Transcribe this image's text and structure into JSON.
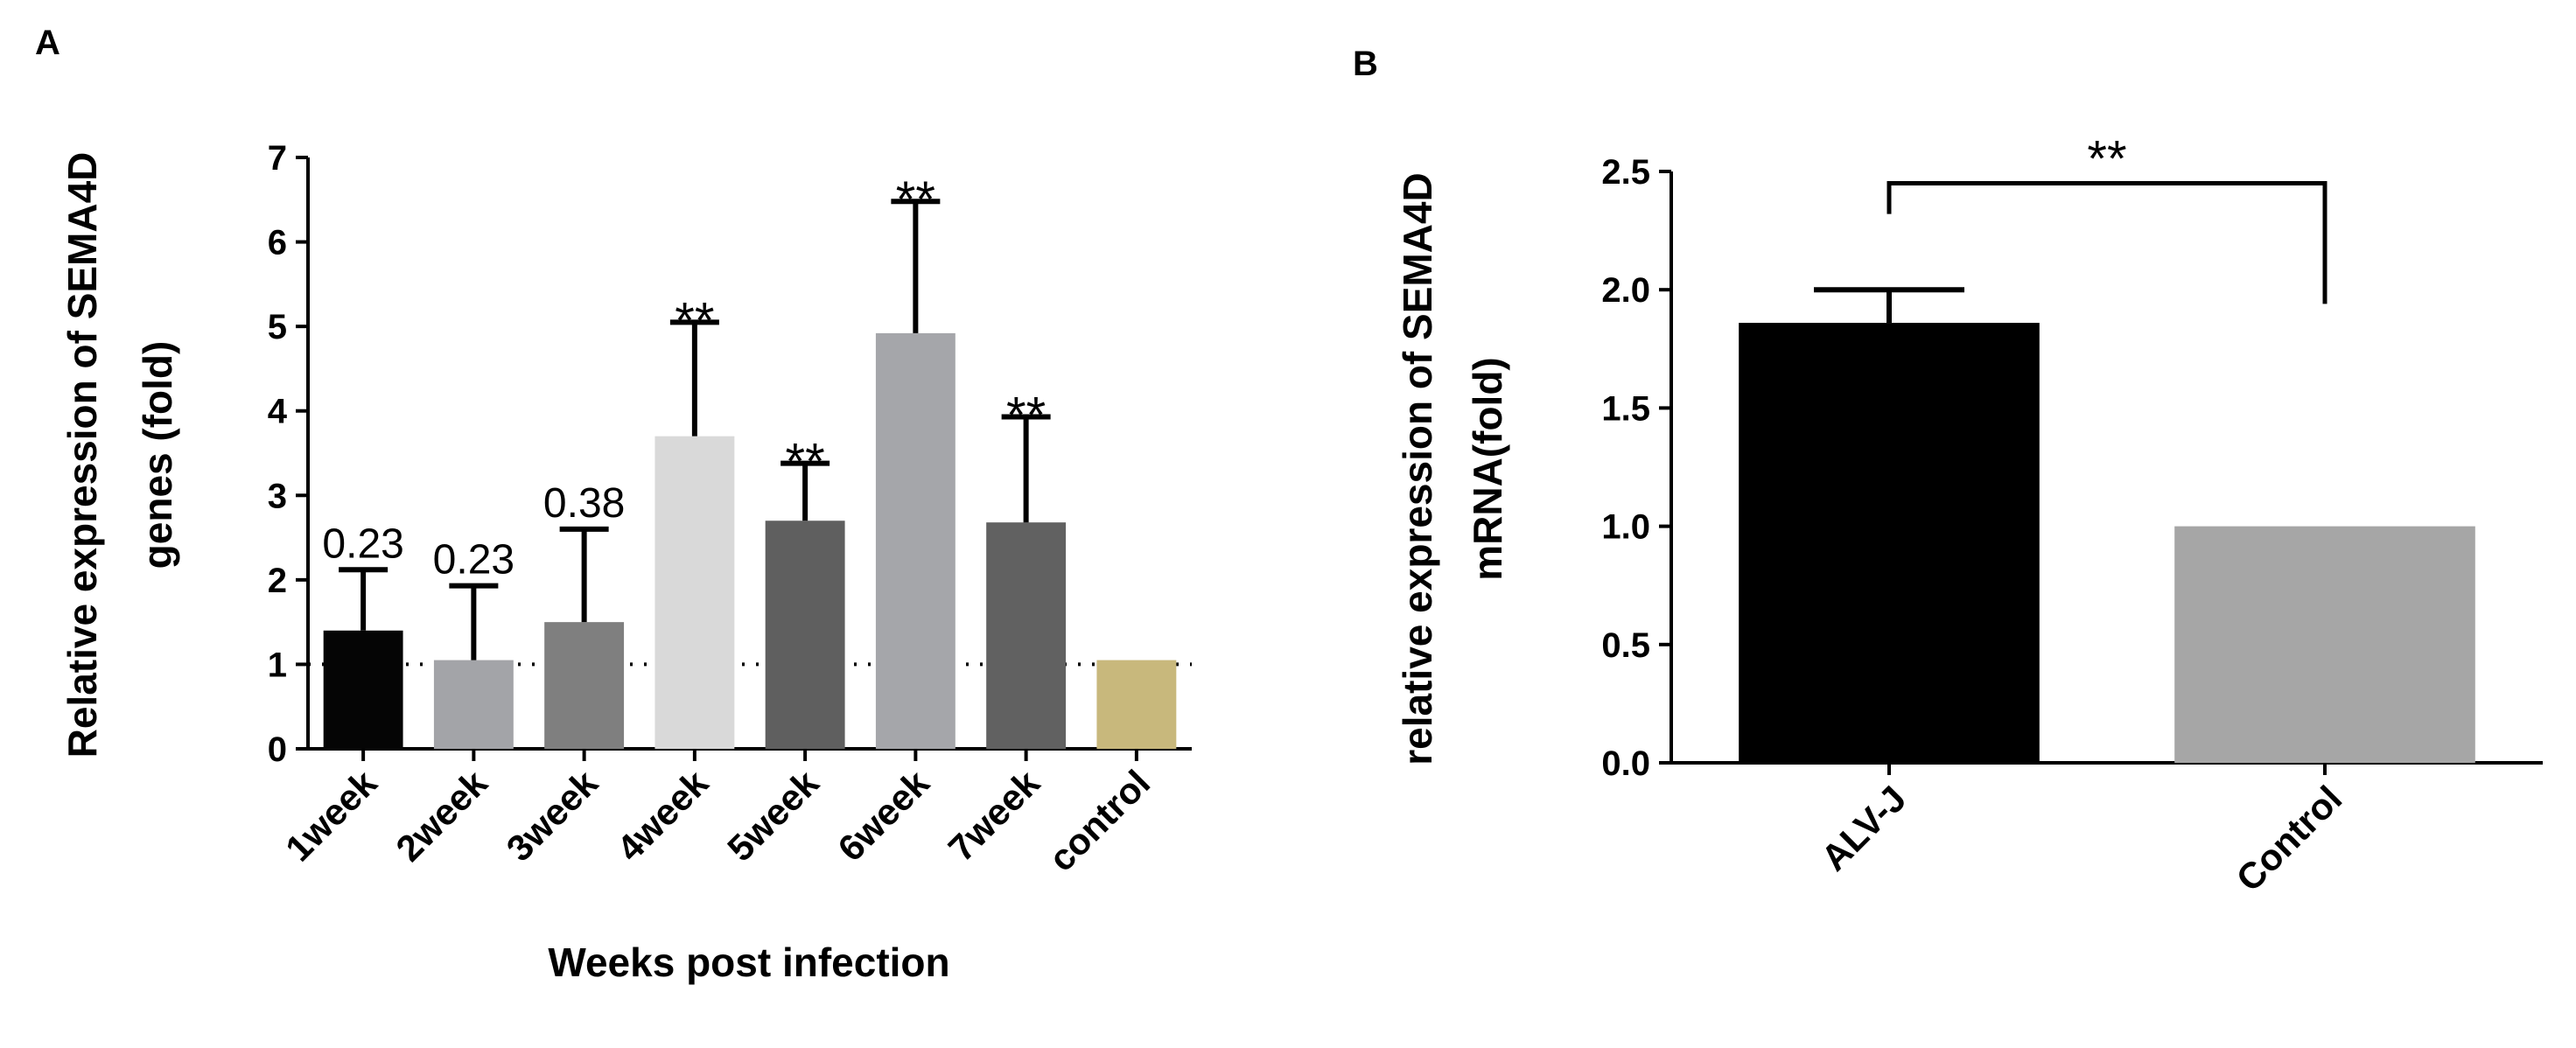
{
  "chart_data": [
    {
      "panel": "A",
      "type": "bar",
      "title": "",
      "xlabel": "Weeks post infection",
      "ylabel": [
        "Relative expression of SEMA4D",
        "genes (fold)"
      ],
      "ylim": [
        0,
        7
      ],
      "yticks": [
        0,
        1,
        2,
        3,
        4,
        5,
        6,
        7
      ],
      "reference_line": 1,
      "categories": [
        "1week",
        "2week",
        "3week",
        "4week",
        "5week",
        "6week",
        "7week",
        "control"
      ],
      "values": [
        1.4,
        1.05,
        1.5,
        3.7,
        2.7,
        4.92,
        2.68,
        1.05
      ],
      "errors": [
        0.72,
        0.88,
        1.1,
        1.35,
        0.68,
        1.56,
        1.25,
        0
      ],
      "colors": [
        "#050505",
        "#a3a4a8",
        "#7f7f7f",
        "#d9d9d9",
        "#5f5f5f",
        "#a5a6aa",
        "#616161",
        "#c8b87c"
      ],
      "annotations": [
        "0.23",
        "0.23",
        "0.38",
        "**",
        "**",
        "**",
        "**",
        ""
      ]
    },
    {
      "panel": "B",
      "type": "bar",
      "title": "",
      "xlabel": "",
      "ylabel": [
        "relative expression of SEMA4D",
        "mRNA(fold)"
      ],
      "ylim": [
        0,
        2.5
      ],
      "yticks": [
        "0.0",
        "0.5",
        "1.0",
        "1.5",
        "2.0",
        "2.5"
      ],
      "categories": [
        "ALV-J",
        "Control"
      ],
      "values": [
        1.86,
        1.0
      ],
      "errors": [
        0.14,
        0
      ],
      "colors": [
        "#000000",
        "#a6a6a6"
      ],
      "significance": {
        "label": "**",
        "from": "ALV-J",
        "to": "Control"
      }
    }
  ]
}
